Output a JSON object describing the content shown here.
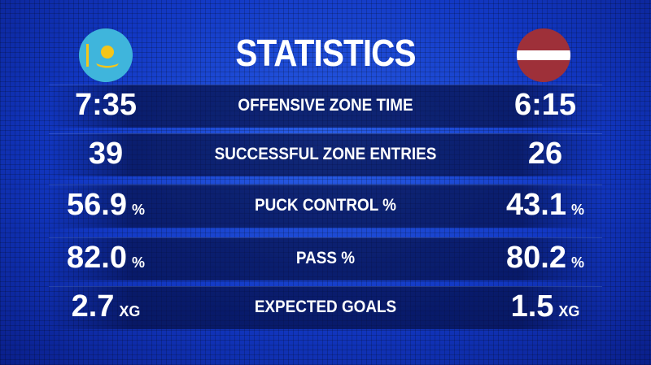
{
  "header": {
    "title": "STATISTICS"
  },
  "rows": [
    {
      "left": {
        "value": "7:35"
      },
      "label": "OFFENSIVE ZONE TIME",
      "right": {
        "value": "6:15"
      }
    },
    {
      "left": {
        "value": "39"
      },
      "label": "SUCCESSFUL ZONE ENTRIES",
      "right": {
        "value": "26"
      }
    },
    {
      "left": {
        "value": "56.9",
        "unit": "%"
      },
      "label": "PUCK CONTROL %",
      "right": {
        "value": "43.1",
        "unit": "%"
      }
    },
    {
      "left": {
        "value": "82.0",
        "unit": "%"
      },
      "label": "PASS %",
      "right": {
        "value": "80.2",
        "unit": "%"
      }
    },
    {
      "left": {
        "value": "2.7",
        "unit": "XG"
      },
      "label": "EXPECTED GOALS",
      "right": {
        "value": "1.5",
        "unit": "XG"
      }
    }
  ]
}
